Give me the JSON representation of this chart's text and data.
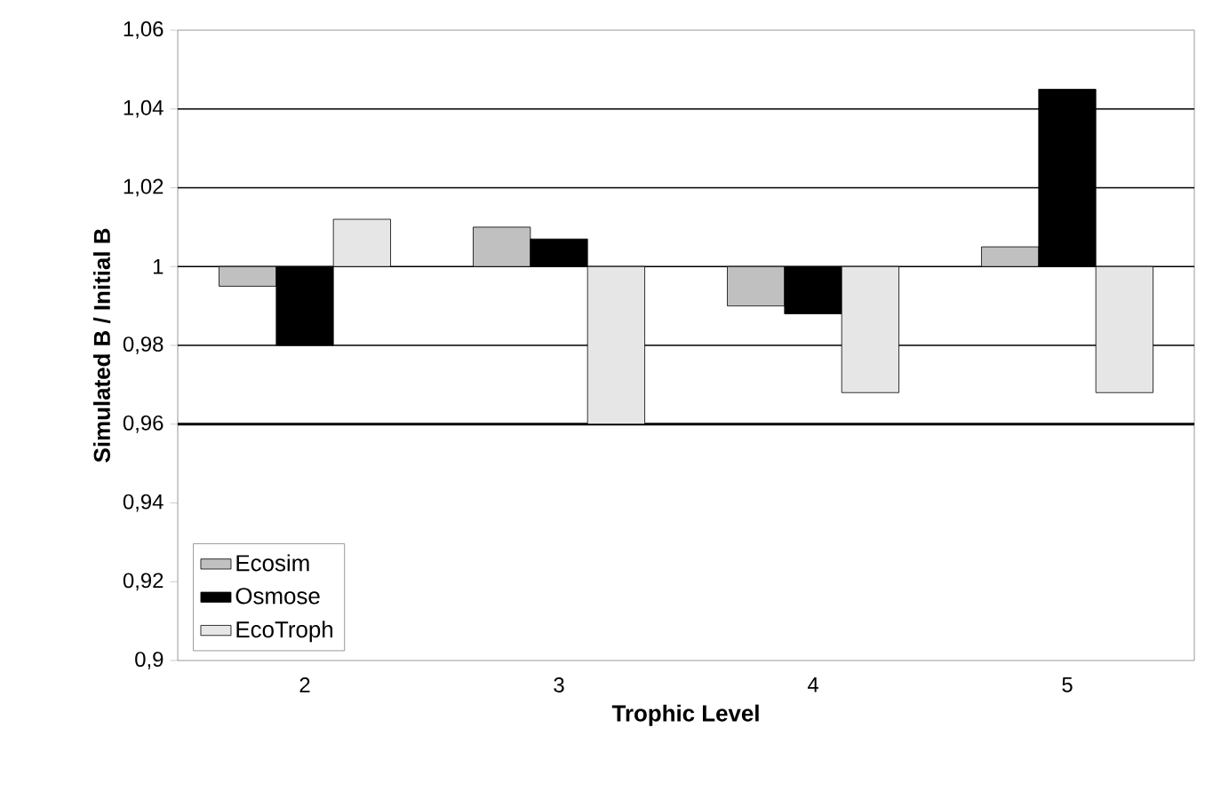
{
  "chart_data": {
    "type": "bar",
    "xlabel": "Trophic Level",
    "ylabel": "Simulated B / Initial B",
    "categories": [
      "2",
      "3",
      "4",
      "5"
    ],
    "series": [
      {
        "name": "Ecosim",
        "color": "#c0c0c0",
        "base": [
          1,
          1,
          1,
          1
        ],
        "values": [
          -0.005,
          0.01,
          -0.01,
          0.005
        ]
      },
      {
        "name": "Osmose",
        "color": "#000000",
        "base": [
          1,
          1,
          1,
          1
        ],
        "values": [
          -0.02,
          0.007,
          -0.012,
          0.045
        ]
      },
      {
        "name": "EcoTroph",
        "color": "#e6e6e6",
        "base": [
          1,
          1,
          1,
          1
        ],
        "values": [
          0.012,
          -0.04,
          -0.032,
          -0.032
        ]
      }
    ],
    "ylim": [
      0.9,
      1.06
    ],
    "yticks": [
      {
        "value": 0.9,
        "label": "0,9"
      },
      {
        "value": 0.92,
        "label": "0,92"
      },
      {
        "value": 0.94,
        "label": "0,94"
      },
      {
        "value": 0.96,
        "label": "0,96"
      },
      {
        "value": 0.98,
        "label": "0,98"
      },
      {
        "value": 1,
        "label": "1"
      },
      {
        "value": 1.02,
        "label": "1,02"
      },
      {
        "value": 1.04,
        "label": "1,04"
      },
      {
        "value": 1.06,
        "label": "1,06"
      }
    ],
    "ref_lines": [
      {
        "axis": "y",
        "value": 0.96
      },
      {
        "axis": "y",
        "value": 0.98
      },
      {
        "axis": "y",
        "value": 1
      },
      {
        "axis": "y",
        "value": 1.02
      },
      {
        "axis": "y",
        "value": 1.04
      }
    ],
    "legend": "bottom left"
  }
}
